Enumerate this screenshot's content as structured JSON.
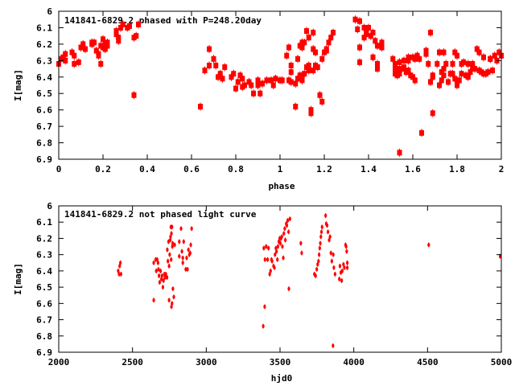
{
  "colors": {
    "marker": "#ff0000",
    "axis": "#000000"
  },
  "chart_data": [
    {
      "type": "scatter",
      "title": "141841-6829.2 phased with P=248.20day",
      "xlabel": "phase",
      "ylabel": "I[mag]",
      "xlim": [
        0,
        2
      ],
      "ylim": [
        6,
        6.9
      ],
      "y_inverted": true,
      "xticks": [
        "0",
        "0.2",
        "0.4",
        "0.6",
        "0.8",
        "1",
        "1.2",
        "1.4",
        "1.6",
        "1.8",
        "2"
      ],
      "yticks": [
        "6",
        "6.1",
        "6.2",
        "6.3",
        "6.4",
        "6.5",
        "6.6",
        "6.7",
        "6.8",
        "6.9"
      ],
      "grid": false,
      "marker": "square-errorbar",
      "points": [
        [
          0.0,
          6.32
        ],
        [
          0.01,
          6.29
        ],
        [
          0.02,
          6.28
        ],
        [
          0.03,
          6.26
        ],
        [
          0.03,
          6.3
        ],
        [
          0.06,
          6.25
        ],
        [
          0.07,
          6.27
        ],
        [
          0.07,
          6.32
        ],
        [
          0.09,
          6.31
        ],
        [
          0.1,
          6.22
        ],
        [
          0.11,
          6.2
        ],
        [
          0.12,
          6.23
        ],
        [
          0.15,
          6.19
        ],
        [
          0.15,
          6.2
        ],
        [
          0.16,
          6.19
        ],
        [
          0.17,
          6.24
        ],
        [
          0.18,
          6.26
        ],
        [
          0.18,
          6.27
        ],
        [
          0.19,
          6.32
        ],
        [
          0.19,
          6.21
        ],
        [
          0.2,
          6.17
        ],
        [
          0.2,
          6.22
        ],
        [
          0.21,
          6.2
        ],
        [
          0.21,
          6.23
        ],
        [
          0.22,
          6.19
        ],
        [
          0.22,
          6.21
        ],
        [
          0.26,
          6.14
        ],
        [
          0.26,
          6.12
        ],
        [
          0.27,
          6.16
        ],
        [
          0.27,
          6.18
        ],
        [
          0.28,
          6.1
        ],
        [
          0.29,
          6.08
        ],
        [
          0.31,
          6.1
        ],
        [
          0.32,
          6.09
        ],
        [
          0.34,
          6.16
        ],
        [
          0.35,
          6.15
        ],
        [
          0.36,
          6.08
        ],
        [
          0.34,
          6.51
        ],
        [
          0.64,
          6.58
        ],
        [
          0.66,
          6.36
        ],
        [
          0.68,
          6.23
        ],
        [
          0.68,
          6.33
        ],
        [
          0.7,
          6.29
        ],
        [
          0.71,
          6.33
        ],
        [
          0.72,
          6.4
        ],
        [
          0.73,
          6.38
        ],
        [
          0.74,
          6.41
        ],
        [
          0.75,
          6.34
        ],
        [
          0.78,
          6.4
        ],
        [
          0.79,
          6.38
        ],
        [
          0.8,
          6.47
        ],
        [
          0.81,
          6.43
        ],
        [
          0.82,
          6.39
        ],
        [
          0.83,
          6.41
        ],
        [
          0.83,
          6.46
        ],
        [
          0.84,
          6.45
        ],
        [
          0.86,
          6.43
        ],
        [
          0.87,
          6.45
        ],
        [
          0.88,
          6.5
        ],
        [
          0.9,
          6.42
        ],
        [
          0.9,
          6.45
        ],
        [
          0.91,
          6.5
        ],
        [
          0.92,
          6.44
        ],
        [
          0.94,
          6.42
        ],
        [
          0.96,
          6.42
        ],
        [
          0.97,
          6.45
        ],
        [
          0.98,
          6.41
        ],
        [
          1.0,
          6.42
        ],
        [
          1.01,
          6.42
        ],
        [
          1.03,
          6.27
        ],
        [
          1.04,
          6.22
        ],
        [
          1.04,
          6.42
        ],
        [
          1.05,
          6.33
        ],
        [
          1.05,
          6.37
        ],
        [
          1.05,
          6.43
        ],
        [
          1.07,
          6.58
        ],
        [
          1.07,
          6.44
        ],
        [
          1.08,
          6.29
        ],
        [
          1.08,
          6.41
        ],
        [
          1.09,
          6.39
        ],
        [
          1.09,
          6.21
        ],
        [
          1.1,
          6.22
        ],
        [
          1.1,
          6.39
        ],
        [
          1.1,
          6.42
        ],
        [
          1.1,
          6.19
        ],
        [
          1.11,
          6.38
        ],
        [
          1.11,
          6.19
        ],
        [
          1.12,
          6.12
        ],
        [
          1.12,
          6.34
        ],
        [
          1.13,
          6.16
        ],
        [
          1.13,
          6.36
        ],
        [
          1.13,
          6.33
        ],
        [
          1.14,
          6.62
        ],
        [
          1.14,
          6.6
        ],
        [
          1.15,
          6.36
        ],
        [
          1.15,
          6.13
        ],
        [
          1.15,
          6.23
        ],
        [
          1.16,
          6.33
        ],
        [
          1.16,
          6.25
        ],
        [
          1.17,
          6.34
        ],
        [
          1.18,
          6.51
        ],
        [
          1.19,
          6.29
        ],
        [
          1.19,
          6.55
        ],
        [
          1.2,
          6.25
        ],
        [
          1.21,
          6.23
        ],
        [
          1.21,
          6.24
        ],
        [
          1.22,
          6.19
        ],
        [
          1.23,
          6.16
        ],
        [
          1.24,
          6.13
        ],
        [
          1.34,
          6.05
        ],
        [
          1.35,
          6.11
        ],
        [
          1.36,
          6.06
        ],
        [
          1.36,
          6.22
        ],
        [
          1.36,
          6.31
        ],
        [
          1.38,
          6.16
        ],
        [
          1.38,
          6.1
        ],
        [
          1.39,
          6.14
        ],
        [
          1.39,
          6.12
        ],
        [
          1.4,
          6.1
        ],
        [
          1.41,
          6.15
        ],
        [
          1.42,
          6.28
        ],
        [
          1.42,
          6.13
        ],
        [
          1.43,
          6.18
        ],
        [
          1.44,
          6.32
        ],
        [
          1.44,
          6.21
        ],
        [
          1.44,
          6.35
        ],
        [
          1.45,
          6.21
        ],
        [
          1.46,
          6.19
        ],
        [
          1.46,
          6.22
        ],
        [
          1.51,
          6.29
        ],
        [
          1.52,
          6.35
        ],
        [
          1.52,
          6.38
        ],
        [
          1.52,
          6.32
        ],
        [
          1.53,
          6.39
        ],
        [
          1.53,
          6.35
        ],
        [
          1.54,
          6.31
        ],
        [
          1.54,
          6.86
        ],
        [
          1.54,
          6.38
        ],
        [
          1.55,
          6.35
        ],
        [
          1.56,
          6.3
        ],
        [
          1.56,
          6.34
        ],
        [
          1.57,
          6.37
        ],
        [
          1.58,
          6.36
        ],
        [
          1.58,
          6.3
        ],
        [
          1.58,
          6.28
        ],
        [
          1.59,
          6.39
        ],
        [
          1.6,
          6.4
        ],
        [
          1.6,
          6.28
        ],
        [
          1.61,
          6.42
        ],
        [
          1.61,
          6.29
        ],
        [
          1.62,
          6.27
        ],
        [
          1.63,
          6.29
        ],
        [
          1.64,
          6.74
        ],
        [
          1.66,
          6.26
        ],
        [
          1.66,
          6.24
        ],
        [
          1.67,
          6.32
        ],
        [
          1.68,
          6.43
        ],
        [
          1.68,
          6.13
        ],
        [
          1.69,
          6.62
        ],
        [
          1.69,
          6.4
        ],
        [
          1.69,
          6.39
        ],
        [
          1.71,
          6.32
        ],
        [
          1.72,
          6.45
        ],
        [
          1.72,
          6.25
        ],
        [
          1.73,
          6.37
        ],
        [
          1.73,
          6.42
        ],
        [
          1.74,
          6.25
        ],
        [
          1.74,
          6.35
        ],
        [
          1.74,
          6.39
        ],
        [
          1.75,
          6.32
        ],
        [
          1.76,
          6.43
        ],
        [
          1.77,
          6.38
        ],
        [
          1.78,
          6.32
        ],
        [
          1.78,
          6.38
        ],
        [
          1.79,
          6.41
        ],
        [
          1.79,
          6.25
        ],
        [
          1.8,
          6.45
        ],
        [
          1.8,
          6.42
        ],
        [
          1.8,
          6.27
        ],
        [
          1.81,
          6.42
        ],
        [
          1.82,
          6.32
        ],
        [
          1.82,
          6.38
        ],
        [
          1.83,
          6.31
        ],
        [
          1.84,
          6.39
        ],
        [
          1.85,
          6.4
        ],
        [
          1.85,
          6.32
        ],
        [
          1.86,
          6.37
        ],
        [
          1.87,
          6.32
        ],
        [
          1.87,
          6.34
        ],
        [
          1.88,
          6.35
        ],
        [
          1.89,
          6.23
        ],
        [
          1.9,
          6.25
        ],
        [
          1.9,
          6.36
        ],
        [
          1.91,
          6.37
        ],
        [
          1.92,
          6.28
        ],
        [
          1.92,
          6.38
        ],
        [
          1.93,
          6.38
        ],
        [
          1.94,
          6.37
        ],
        [
          1.95,
          6.29
        ],
        [
          1.95,
          6.29
        ],
        [
          1.96,
          6.36
        ],
        [
          1.97,
          6.27
        ],
        [
          1.98,
          6.3
        ],
        [
          1.99,
          6.25
        ],
        [
          2.0,
          6.27
        ]
      ]
    },
    {
      "type": "scatter",
      "title": "141841-6829.2 not phased light curve",
      "xlabel": "hjd0",
      "ylabel": "I[mag]",
      "xlim": [
        2000,
        5000
      ],
      "ylim": [
        6,
        6.9
      ],
      "y_inverted": true,
      "xticks": [
        "2000",
        "2500",
        "3000",
        "3500",
        "4000",
        "4500",
        "5000"
      ],
      "yticks": [
        "6",
        "6.1",
        "6.2",
        "6.3",
        "6.4",
        "6.5",
        "6.6",
        "6.7",
        "6.8",
        "6.9"
      ],
      "grid": false,
      "marker": "small-errorbar",
      "points": [
        [
          2403,
          6.4
        ],
        [
          2409,
          6.42
        ],
        [
          2413,
          6.37
        ],
        [
          2418,
          6.35
        ],
        [
          2422,
          6.42
        ],
        [
          2644,
          6.58
        ],
        [
          2644,
          6.35
        ],
        [
          2657,
          6.33
        ],
        [
          2661,
          6.4
        ],
        [
          2667,
          6.33
        ],
        [
          2673,
          6.35
        ],
        [
          2676,
          6.39
        ],
        [
          2680,
          6.43
        ],
        [
          2684,
          6.47
        ],
        [
          2690,
          6.4
        ],
        [
          2696,
          6.45
        ],
        [
          2700,
          6.43
        ],
        [
          2706,
          6.5
        ],
        [
          2710,
          6.46
        ],
        [
          2716,
          6.42
        ],
        [
          2720,
          6.44
        ],
        [
          2726,
          6.42
        ],
        [
          2734,
          6.44
        ],
        [
          2736,
          6.27
        ],
        [
          2740,
          6.34
        ],
        [
          2744,
          6.22
        ],
        [
          2748,
          6.58
        ],
        [
          2748,
          6.37
        ],
        [
          2752,
          6.3
        ],
        [
          2756,
          6.21
        ],
        [
          2758,
          6.19
        ],
        [
          2760,
          6.13
        ],
        [
          2762,
          6.33
        ],
        [
          2764,
          6.17
        ],
        [
          2764,
          6.62
        ],
        [
          2768,
          6.6
        ],
        [
          2768,
          6.13
        ],
        [
          2770,
          6.25
        ],
        [
          2772,
          6.23
        ],
        [
          2774,
          6.51
        ],
        [
          2780,
          6.56
        ],
        [
          2786,
          6.24
        ],
        [
          2817,
          6.22
        ],
        [
          2817,
          6.31
        ],
        [
          2829,
          6.14
        ],
        [
          2835,
          6.28
        ],
        [
          2841,
          6.35
        ],
        [
          2841,
          6.32
        ],
        [
          2847,
          6.22
        ],
        [
          2861,
          6.39
        ],
        [
          2867,
          6.32
        ],
        [
          2873,
          6.39
        ],
        [
          2879,
          6.27
        ],
        [
          2885,
          6.3
        ],
        [
          2891,
          6.29
        ],
        [
          2895,
          6.24
        ],
        [
          2901,
          6.14
        ],
        [
          3386,
          6.74
        ],
        [
          3396,
          6.62
        ],
        [
          3390,
          6.26
        ],
        [
          3398,
          6.33
        ],
        [
          3406,
          6.25
        ],
        [
          3416,
          6.33
        ],
        [
          3422,
          6.26
        ],
        [
          3430,
          6.42
        ],
        [
          3436,
          6.4
        ],
        [
          3442,
          6.33
        ],
        [
          3446,
          6.34
        ],
        [
          3456,
          6.37
        ],
        [
          3462,
          6.38
        ],
        [
          3466,
          6.3
        ],
        [
          3472,
          6.26
        ],
        [
          3476,
          6.28
        ],
        [
          3482,
          6.33
        ],
        [
          3486,
          6.25
        ],
        [
          3492,
          6.22
        ],
        [
          3498,
          6.2
        ],
        [
          3502,
          6.23
        ],
        [
          3506,
          6.2
        ],
        [
          3512,
          6.19
        ],
        [
          3516,
          6.25
        ],
        [
          3522,
          6.32
        ],
        [
          3526,
          6.17
        ],
        [
          3532,
          6.14
        ],
        [
          3536,
          6.21
        ],
        [
          3542,
          6.11
        ],
        [
          3546,
          6.12
        ],
        [
          3552,
          6.09
        ],
        [
          3558,
          6.16
        ],
        [
          3560,
          6.51
        ],
        [
          3567,
          6.08
        ],
        [
          3641,
          6.23
        ],
        [
          3647,
          6.29
        ],
        [
          3733,
          6.42
        ],
        [
          3741,
          6.43
        ],
        [
          3749,
          6.39
        ],
        [
          3755,
          6.36
        ],
        [
          3761,
          6.34
        ],
        [
          3765,
          6.3
        ],
        [
          3769,
          6.26
        ],
        [
          3773,
          6.23
        ],
        [
          3777,
          6.19
        ],
        [
          3781,
          6.16
        ],
        [
          3785,
          6.13
        ],
        [
          3809,
          6.06
        ],
        [
          3813,
          6.11
        ],
        [
          3819,
          6.12
        ],
        [
          3825,
          6.16
        ],
        [
          3833,
          6.21
        ],
        [
          3839,
          6.19
        ],
        [
          3845,
          6.29
        ],
        [
          3851,
          6.34
        ],
        [
          3859,
          6.86
        ],
        [
          3861,
          6.3
        ],
        [
          3865,
          6.38
        ],
        [
          3873,
          6.42
        ],
        [
          3902,
          6.45
        ],
        [
          3906,
          6.37
        ],
        [
          3912,
          6.41
        ],
        [
          3918,
          6.46
        ],
        [
          3922,
          6.4
        ],
        [
          3930,
          6.36
        ],
        [
          3936,
          6.38
        ],
        [
          3944,
          6.24
        ],
        [
          3948,
          6.25
        ],
        [
          3952,
          6.28
        ],
        [
          3956,
          6.38
        ],
        [
          3956,
          6.35
        ],
        [
          4508,
          6.24
        ],
        [
          4992,
          6.31
        ]
      ]
    }
  ]
}
